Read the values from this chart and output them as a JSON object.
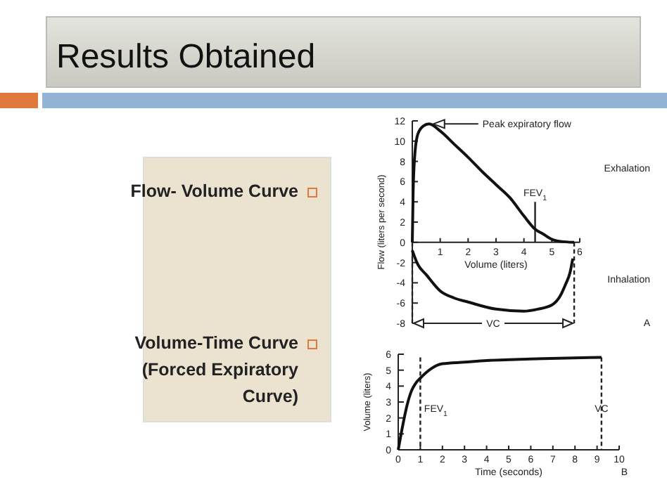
{
  "chart_data": [
    {
      "type": "other",
      "title": "Results Obtained",
      "annotations": [
        "Flow- Volume Curve",
        "Volume-Time Curve (Forced Expiratory Curve)"
      ]
    },
    {
      "type": "line",
      "xlabel": "Volume (liters)",
      "ylabel": "Flow (liters per second)",
      "xlim": [
        0,
        6
      ],
      "ylim": [
        -8,
        12
      ],
      "xticks": [
        1,
        2,
        3,
        4,
        5,
        6
      ],
      "yticks": [
        -8,
        -6,
        -4,
        -2,
        0,
        2,
        4,
        6,
        8,
        10,
        12
      ],
      "grid": false,
      "marker": "none",
      "line_style": "solid",
      "series": [
        {
          "color": "#111111",
          "x": [
            0,
            0.03,
            0.1,
            0.2,
            0.4,
            0.6,
            1,
            1.5,
            2,
            2.5,
            3,
            3.5,
            4,
            4.4,
            4.7,
            5,
            5.3,
            5.8
          ],
          "values": [
            0,
            5,
            9,
            10.7,
            11.5,
            11.7,
            11,
            9.7,
            8.4,
            7,
            5.7,
            4.4,
            2.6,
            1.3,
            0.8,
            0.3,
            0.1,
            0
          ]
        },
        {
          "color": "#111111",
          "x": [
            0,
            0.2,
            0.5,
            1,
            1.5,
            2,
            3,
            4,
            4.5,
            5,
            5.3,
            5.5,
            5.65,
            5.75
          ],
          "values": [
            -0.8,
            -2.2,
            -3.2,
            -4.8,
            -5.5,
            -5.9,
            -6.6,
            -6.8,
            -6.6,
            -6.2,
            -5.3,
            -4.1,
            -3,
            -1.6
          ]
        }
      ],
      "ref_lines": [
        {
          "axis": "x",
          "value": 4.4,
          "label": "FEV$_{1}$",
          "line_style": "solid"
        },
        {
          "axis": "x",
          "value": 0,
          "label": null,
          "line_style": "dashed"
        },
        {
          "axis": "x",
          "value": 5.8,
          "label": null,
          "line_style": "dashed"
        }
      ],
      "annotations": [
        "Peak expiratory flow",
        "Exhalation",
        "Inhalation",
        "VC",
        "A"
      ]
    },
    {
      "type": "line",
      "xlabel": "Time (seconds)",
      "ylabel": "Volume (liters)",
      "xlim": [
        0,
        10
      ],
      "ylim": [
        0,
        6
      ],
      "xticks": [
        0,
        1,
        2,
        3,
        4,
        5,
        6,
        7,
        8,
        9,
        10
      ],
      "yticks": [
        0,
        1,
        2,
        3,
        4,
        5,
        6
      ],
      "grid": false,
      "marker": "none",
      "line_style": "solid",
      "series": [
        {
          "color": "#111111",
          "x": [
            0,
            0.2,
            0.4,
            0.6,
            0.8,
            1,
            1.5,
            2,
            3,
            4,
            6,
            9.2
          ],
          "values": [
            0,
            1.5,
            2.8,
            3.7,
            4.2,
            4.5,
            5.1,
            5.4,
            5.5,
            5.6,
            5.7,
            5.8
          ]
        }
      ],
      "ref_lines": [
        {
          "axis": "x",
          "value": 1,
          "label": "FEV$_{1}$",
          "line_style": "dashed"
        },
        {
          "axis": "x",
          "value": 9.2,
          "label": "VC",
          "line_style": "dashed"
        }
      ],
      "annotations": [
        "B"
      ]
    }
  ]
}
